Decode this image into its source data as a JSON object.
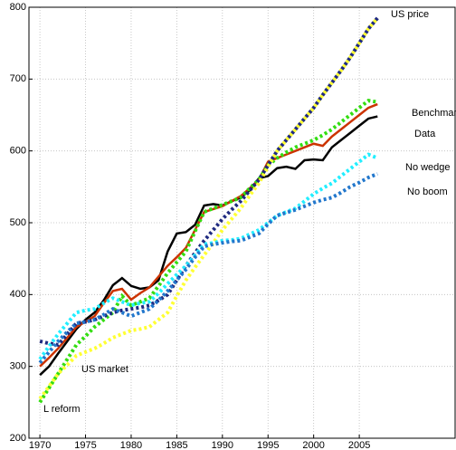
{
  "chart_data": {
    "type": "line",
    "x": [
      1970,
      1971,
      1972,
      1973,
      1974,
      1975,
      1976,
      1977,
      1978,
      1979,
      1980,
      1981,
      1982,
      1983,
      1984,
      1985,
      1986,
      1987,
      1988,
      1989,
      1990,
      1991,
      1992,
      1993,
      1994,
      1995,
      1996,
      1997,
      1998,
      1999,
      2000,
      2001,
      2002,
      2003,
      2004,
      2005,
      2006,
      2007
    ],
    "series": [
      {
        "name": "Data",
        "color": "#000000",
        "style": "solid",
        "values": [
          288,
          300,
          318,
          335,
          352,
          365,
          375,
          392,
          413,
          423,
          412,
          408,
          410,
          420,
          460,
          485,
          487,
          497,
          524,
          526,
          524,
          530,
          535,
          545,
          562,
          565,
          576,
          578,
          575,
          587,
          588,
          587,
          605,
          615,
          625,
          635,
          645,
          648
        ]
      },
      {
        "name": "Benchmark",
        "color": "#cc3300",
        "style": "solid",
        "values": [
          300,
          312,
          325,
          340,
          355,
          362,
          370,
          388,
          405,
          408,
          393,
          402,
          410,
          425,
          440,
          452,
          465,
          490,
          515,
          519,
          523,
          530,
          537,
          548,
          560,
          585,
          590,
          595,
          600,
          605,
          610,
          607,
          620,
          630,
          640,
          650,
          660,
          665
        ]
      },
      {
        "name": "L reform",
        "color": "#33dd11",
        "style": "dotted",
        "values": [
          250,
          270,
          290,
          310,
          330,
          342,
          355,
          365,
          375,
          398,
          385,
          390,
          395,
          412,
          430,
          445,
          460,
          488,
          515,
          520,
          525,
          530,
          535,
          548,
          560,
          580,
          590,
          598,
          605,
          610,
          615,
          622,
          630,
          640,
          650,
          660,
          670,
          668
        ]
      },
      {
        "name": "US market",
        "color": "#ffff33",
        "style": "dotted",
        "values": [
          255,
          272,
          290,
          302,
          315,
          320,
          325,
          332,
          340,
          345,
          350,
          352,
          355,
          365,
          375,
          398,
          420,
          438,
          455,
          472,
          490,
          505,
          520,
          538,
          555,
          578,
          600,
          615,
          630,
          645,
          660,
          678,
          695,
          712,
          730,
          750,
          770,
          785
        ]
      },
      {
        "name": "US price",
        "color": "#1f2a80",
        "style": "dotted",
        "values": [
          335,
          332,
          330,
          345,
          360,
          362,
          365,
          370,
          375,
          378,
          380,
          382,
          385,
          392,
          400,
          420,
          440,
          458,
          475,
          490,
          505,
          518,
          530,
          545,
          560,
          580,
          600,
          615,
          630,
          645,
          660,
          678,
          695,
          712,
          730,
          750,
          770,
          785
        ]
      },
      {
        "name": "No wedge",
        "color": "#22eeff",
        "style": "dotted",
        "values": [
          310,
          328,
          345,
          360,
          375,
          378,
          380,
          388,
          395,
          390,
          385,
          388,
          390,
          402,
          415,
          428,
          440,
          455,
          470,
          472,
          475,
          476,
          478,
          484,
          490,
          500,
          510,
          515,
          520,
          530,
          540,
          548,
          555,
          565,
          575,
          585,
          595,
          590
        ]
      },
      {
        "name": "No boom",
        "color": "#2277cc",
        "style": "dotted",
        "values": [
          305,
          320,
          335,
          348,
          360,
          362,
          365,
          372,
          380,
          375,
          370,
          375,
          380,
          392,
          405,
          420,
          435,
          452,
          467,
          470,
          472,
          474,
          475,
          480,
          485,
          498,
          510,
          514,
          518,
          523,
          528,
          532,
          535,
          542,
          550,
          556,
          563,
          568
        ]
      }
    ],
    "xlim": [
      1968.8,
      2015.5
    ],
    "xticks": [
      1970,
      1975,
      1980,
      1985,
      1990,
      1995,
      2000,
      2005
    ],
    "ylim": [
      200,
      800
    ],
    "yticks": [
      200,
      300,
      400,
      500,
      600,
      700,
      800
    ],
    "grid": true
  }
}
